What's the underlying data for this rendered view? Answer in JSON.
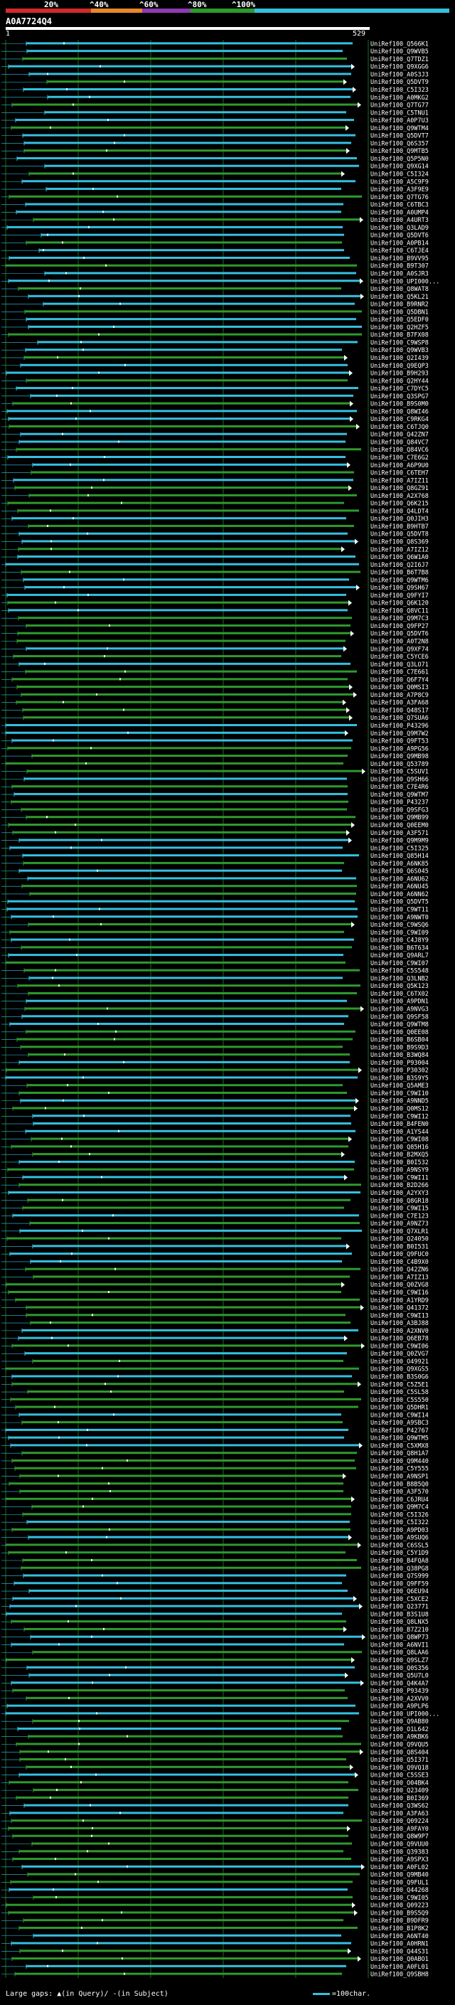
{
  "scale": {
    "labels": [
      "20%",
      "^40%",
      "^60%",
      "^80%",
      "^100%"
    ],
    "colors": [
      "#d42a2a",
      "#e8882a",
      "#8e3ab0",
      "#2e9a2e",
      "#35c0e0"
    ]
  },
  "query": {
    "id": "A0A7724Q4",
    "start": "1",
    "end": "529"
  },
  "alignment": {
    "hits": [
      "UniRef100_Q566K1",
      "UniRef100_Q9WVB5",
      "UniRef100_Q7TDZ1",
      "UniRef100_Q9XGG6",
      "UniRef100_A0S3J3",
      "UniRef100_Q5DVT9",
      "UniRef100_C5I323",
      "UniRef100_A0MKG2",
      "UniRef100_Q7TG77",
      "UniRef100_C5TNU1",
      "UniRef100_A0P7U3",
      "UniRef100_Q9WTM4",
      "UniRef100_Q5DVT7",
      "UniRef100_Q6S357",
      "UniRef100_Q9MTB5",
      "UniRef100_Q5P5N0",
      "UniRef100_Q9XG14",
      "UniRef100_C5I324",
      "UniRef100_A5C9F9",
      "UniRef100_A3F9E9",
      "UniRef100_Q7TG76",
      "UniRef100_C6TBC3",
      "UniRef100_A0UMP4",
      "UniRef100_A4URT3",
      "UniRef100_Q3LAD9",
      "UniRef100_Q5DVT6",
      "UniRef100_A0PB14",
      "UniRef100_C6TJE4",
      "UniRef100_B9VV95",
      "UniRef100_B9T307",
      "UniRef100_A0SJR3",
      "UniRef100_UPI000...",
      "UniRef100_Q8WAT8",
      "UniRef100_Q5KL21",
      "UniRef100_B9RNR2",
      "UniRef100_Q5DBN1",
      "UniRef100_Q5EDF0",
      "UniRef100_Q2HZF5",
      "UniRef100_B7FX08",
      "UniRef100_C9WSP8",
      "UniRef100_Q9WVB3",
      "UniRef100_Q2I439",
      "UniRef100_Q9EQP3",
      "UniRef100_B9H293",
      "UniRef100_Q2HY44",
      "UniRef100_C7DYC5",
      "UniRef100_Q3SPG7",
      "UniRef100_B9S0M0",
      "UniRef100_Q8WI46",
      "UniRef100_C9RKG4",
      "UniRef100_C6TJQ0",
      "UniRef100_Q42ZN7",
      "UniRef100_Q84VC7",
      "UniRef100_Q84VC6",
      "UniRef100_C7E6G2",
      "UniRef100_A6P9U0",
      "UniRef100_C6TEH7",
      "UniRef100_A7IZ11",
      "UniRef100_Q8GZ91",
      "UniRef100_A2X768",
      "UniRef100_Q6K215",
      "UniRef100_Q4LDT4",
      "UniRef100_Q0JIH3",
      "UniRef100_B9HTB7",
      "UniRef100_Q5DVT8",
      "UniRef100_Q8S369",
      "UniRef100_A7IZ12",
      "UniRef100_Q6W1A0",
      "UniRef100_Q2I6J7",
      "UniRef100_B6T7B8",
      "UniRef100_Q9WTM6",
      "UniRef100_Q9SH67",
      "UniRef100_Q9FYI7",
      "UniRef100_Q6K120",
      "UniRef100_Q8VC11",
      "UniRef100_Q9M7C3",
      "UniRef100_Q9FP27",
      "UniRef100_Q5DVT6",
      "UniRef100_A0T2N8",
      "UniRef100_Q9XF74",
      "UniRef100_C5YCE6",
      "UniRef100_Q3LO71",
      "UniRef100_C7E661",
      "UniRef100_Q6F7Y4",
      "UniRef100_Q0MSI3",
      "UniRef100_A7P8C9",
      "UniRef100_A3FA68",
      "UniRef100_Q48S17",
      "UniRef100_Q7SUA6",
      "UniRef100_P43296",
      "UniRef100_Q9M7W2",
      "UniRef100_Q9FT53",
      "UniRef100_A9PG56",
      "UniRef100_Q9MB98",
      "UniRef100_Q53789",
      "UniRef100_C5SUV1",
      "UniRef100_Q9SH66",
      "UniRef100_C7E4R6",
      "UniRef100_Q9WTM7",
      "UniRef100_P43237",
      "UniRef100_Q9SFG3",
      "UniRef100_Q9MB99",
      "UniRef100_Q0EEM0",
      "UniRef100_A3F571",
      "UniRef100_Q9M9M9",
      "UniRef100_C5I325",
      "UniRef100_Q85H14",
      "UniRef100_A6NK85",
      "UniRef100_Q6S045",
      "UniRef100_A6NU62",
      "UniRef100_A6NU45",
      "UniRef100_A6NN62",
      "UniRef100_Q5DVT5",
      "UniRef100_C9WT11",
      "UniRef100_A9NWT0",
      "UniRef100_C9WSQ6",
      "UniRef100_C9WI09",
      "UniRef100_C4J8Y9",
      "UniRef100_B6T634",
      "UniRef100_Q9ARL7",
      "UniRef100_C9WI07",
      "UniRef100_C5S548",
      "UniRef100_Q3LNB2",
      "UniRef100_Q5K123",
      "UniRef100_C6TX02",
      "UniRef100_A9PDN1",
      "UniRef100_A9NVG3",
      "UniRef100_Q9SF58",
      "UniRef100_Q9WTM8",
      "UniRef100_Q0EE08",
      "UniRef100_B6SB04",
      "UniRef100_B9S9D3",
      "UniRef100_B3WQ84",
      "UniRef100_P93004",
      "UniRef100_P30302",
      "UniRef100_B3S9Y5",
      "UniRef100_Q5AME3",
      "UniRef100_C9WI10",
      "UniRef100_A9NND5",
      "UniRef100_Q0MS12",
      "UniRef100_C9WI12",
      "UniRef100_B4FEN0",
      "UniRef100_A1YS44",
      "UniRef100_C9WI08",
      "UniRef100_Q85H16",
      "UniRef100_B2MXQ5",
      "UniRef100_B0I532",
      "UniRef100_A9NSY9",
      "UniRef100_C9WI11",
      "UniRef100_B2D266",
      "UniRef100_A2YXY3",
      "UniRef100_Q8GR18",
      "UniRef100_C9WI15",
      "UniRef100_C7E123",
      "UniRef100_A9NZ73",
      "UniRef100_Q7XLR1",
      "UniRef100_Q24050",
      "UniRef100_B0I531",
      "UniRef100_Q9FUC0",
      "UniRef100_C4B9X0",
      "UniRef100_Q42ZN6",
      "UniRef100_A7IZ13",
      "UniRef100_Q0ZVG8",
      "UniRef100_C9WI16",
      "UniRef100_A1YRD9",
      "UniRef100_Q41372",
      "UniRef100_C9WI13",
      "UniRef100_A3BJ88",
      "UniRef100_A2XNV0",
      "UniRef100_Q6EB78",
      "UniRef100_C9WI06",
      "UniRef100_Q0ZVG7",
      "UniRef100_O49921",
      "UniRef100_Q9XGS5",
      "UniRef100_B3S0G6",
      "UniRef100_C5Z5E1",
      "UniRef100_C5SL58",
      "UniRef100_C5S550",
      "UniRef100_Q5DHR1",
      "UniRef100_C9WI14",
      "UniRef100_A9SBC3",
      "UniRef100_P42767",
      "UniRef100_Q9WTM5",
      "UniRef100_C5XMX8",
      "UniRef100_Q8H1A7",
      "UniRef100_Q9M440",
      "UniRef100_C5Y555",
      "UniRef100_A9NSP1",
      "UniRef100_B8B5Q0",
      "UniRef100_A3F570",
      "UniRef100_C6JRU4",
      "UniRef100_Q9M7C4",
      "UniRef100_C5I326",
      "UniRef100_C5I322",
      "UniRef100_A9PD03",
      "UniRef100_A9SUQ6",
      "UniRef100_C6SSL5",
      "UniRef100_C5Y1D9",
      "UniRef100_B4FQA8",
      "UniRef100_Q38PG8",
      "UniRef100_Q7S999",
      "UniRef100_Q9FF59",
      "UniRef100_Q6EU94",
      "UniRef100_C5XCE2",
      "UniRef100_Q23771",
      "UniRef100_B3S1U8",
      "UniRef100_Q8LNX5",
      "UniRef100_B7Z210",
      "UniRef100_Q8WP73",
      "UniRef100_A6NVI1",
      "UniRef100_Q8LAA6",
      "UniRef100_Q9SLZ7",
      "UniRef100_Q0S356",
      "UniRef100_Q5U7L0",
      "UniRef100_Q4K4A7",
      "UniRef100_P93439",
      "UniRef100_A2XVV0",
      "UniRef100_A9PLP6",
      "UniRef100_UPI000...",
      "UniRef100_Q9AB80",
      "UniRef100_O1L642",
      "UniRef100_A9KBK6",
      "UniRef100_Q9VQU5",
      "UniRef100_Q8S404",
      "UniRef100_Q5I371",
      "UniRef100_Q9VQ18",
      "UniRef100_C5SSE3",
      "UniRef100_O04BK4",
      "UniRef100_Q23409",
      "UniRef100_B0I369",
      "UniRef100_Q3WS62",
      "UniRef100_A3FA63",
      "UniRef100_Q09224",
      "UniRef100_A9FAY0",
      "UniRef100_Q8W9P7",
      "UniRef100_Q9VUU0",
      "UniRef100_Q39383",
      "UniRef100_A9SPX3",
      "UniRef100_A0FL02",
      "UniRef100_Q9MB40",
      "UniRef100_Q9FUL1",
      "UniRef100_Q44268",
      "UniRef100_C9WI05",
      "UniRef100_Q09223",
      "UniRef100_B9S5Q9",
      "UniRef100_B9DFR9",
      "UniRef100_B1P8K2",
      "UniRef100_A6NT40",
      "UniRef100_A0HRN1",
      "UniRef100_Q44S31",
      "UniRef100_Q0ABO1",
      "UniRef100_A0FL01",
      "UniRef100_Q9SBH8"
    ]
  },
  "legend": {
    "left": "Large gaps: ▲(in Query)/ -(in Subject)",
    "right": "=100char."
  },
  "colors": {
    "cyan": "#35c0e0",
    "green": "#2e9a2e",
    "grid": "#1e6e1e",
    "ref_line": "#2ec8e8",
    "background": "#000000",
    "text": "#ffffff"
  }
}
